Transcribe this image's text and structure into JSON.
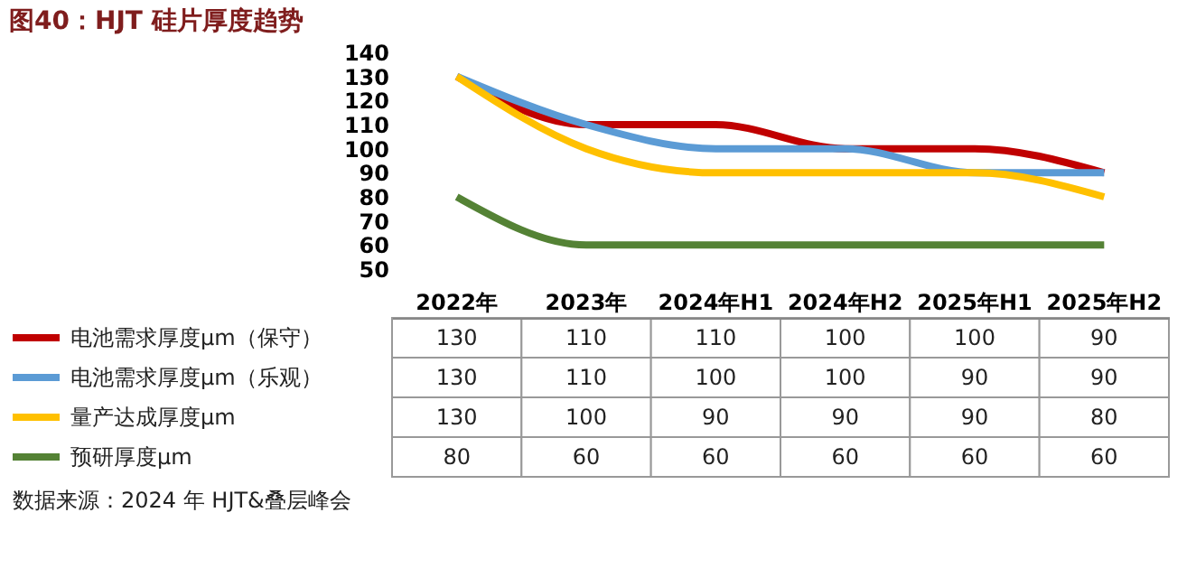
{
  "chart_data": {
    "type": "line",
    "title": "图40：HJT 硅片厚度趋势",
    "categories": [
      "2022年",
      "2023年",
      "2024年H1",
      "2024年H2",
      "2025年H1",
      "2025年H2"
    ],
    "series": [
      {
        "name": "电池需求厚度μm（保守）",
        "color": "#c00000",
        "values": [
          130,
          110,
          110,
          100,
          100,
          90
        ]
      },
      {
        "name": "电池需求厚度μm（乐观）",
        "color": "#5b9bd5",
        "values": [
          130,
          110,
          100,
          100,
          90,
          90
        ]
      },
      {
        "name": "量产达成厚度μm",
        "color": "#ffc000",
        "values": [
          130,
          100,
          90,
          90,
          90,
          80
        ]
      },
      {
        "name": "预研厚度μm",
        "color": "#548235",
        "values": [
          80,
          60,
          60,
          60,
          60,
          60
        ]
      }
    ],
    "ylim": [
      50,
      140
    ],
    "yticks": [
      50,
      60,
      70,
      80,
      90,
      100,
      110,
      120,
      130,
      140
    ],
    "grid": false,
    "legend": "bottom",
    "data_labels": true,
    "marker": "none",
    "line_style": "solid",
    "annotations": [
      "数据来源：2024 年 HJT&叠层峰会"
    ]
  }
}
